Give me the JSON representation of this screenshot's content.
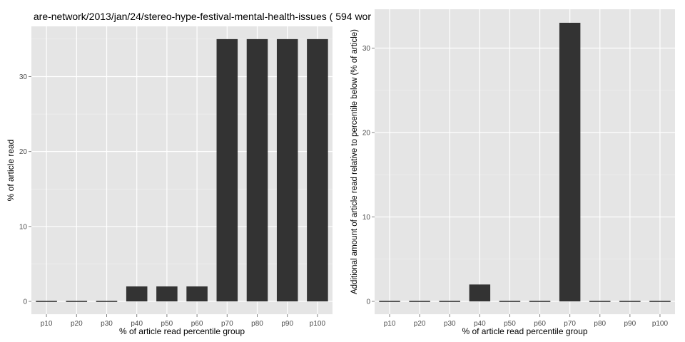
{
  "title": "are-network/2013/jan/24/stereo-hype-festival-mental-health-issues ( 594 wor",
  "chart_data": [
    {
      "type": "bar",
      "title": "are-network/2013/jan/24/stereo-hype-festival-mental-health-issues ( 594 wor",
      "xlabel": "% of article read percentile group",
      "ylabel": "% of article read",
      "categories": [
        "p10",
        "p20",
        "p30",
        "p40",
        "p50",
        "p60",
        "p70",
        "p80",
        "p90",
        "p100"
      ],
      "values": [
        0,
        0,
        0,
        2,
        2,
        2,
        35,
        35,
        35,
        35
      ],
      "ylim": [
        0,
        36.7
      ],
      "yticks": [
        0,
        10,
        20,
        30
      ],
      "grid": true,
      "bar_color": "#333333",
      "panel_color": "#E5E5E5"
    },
    {
      "type": "bar",
      "xlabel": "% of article read percentile group",
      "ylabel": "Additional amount of article read relative to percentile below (% of article)",
      "categories": [
        "p10",
        "p20",
        "p30",
        "p40",
        "p50",
        "p60",
        "p70",
        "p80",
        "p90",
        "p100"
      ],
      "values": [
        0,
        0,
        0,
        2,
        0,
        0,
        33,
        0,
        0,
        0
      ],
      "ylim": [
        0,
        34.6
      ],
      "yticks": [
        0,
        10,
        20,
        30
      ],
      "grid": true,
      "bar_color": "#333333",
      "panel_color": "#E5E5E5"
    }
  ]
}
